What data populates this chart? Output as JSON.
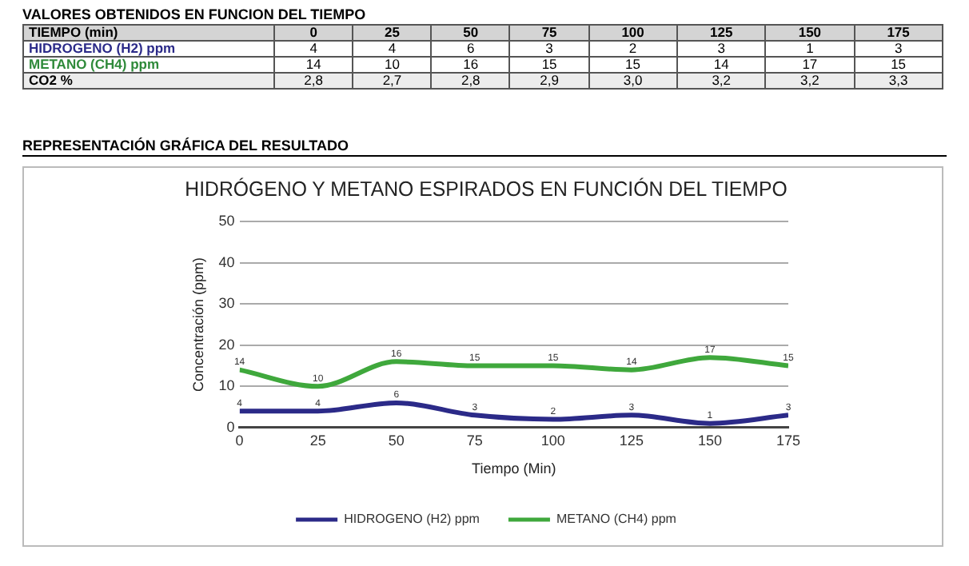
{
  "chart_data": [
    {
      "type": "heatmap",
      "title": "VALORES OBTENIDOS EN FUNCION DEL TIEMPO",
      "xlabel": "TIEMPO (min)",
      "categories": [
        "0",
        "25",
        "50",
        "75",
        "100",
        "125",
        "150",
        "175"
      ],
      "y_categories": [
        "HIDROGENO (H2) ppm",
        "METANO (CH4) ppm",
        "CO2 %"
      ],
      "cells": [
        [
          4,
          4,
          6,
          3,
          2,
          3,
          1,
          3
        ],
        [
          14,
          10,
          16,
          15,
          15,
          14,
          17,
          15
        ],
        [
          2.8,
          2.7,
          2.8,
          2.9,
          3.0,
          3.2,
          3.2,
          3.3
        ]
      ],
      "cell_labels": [
        [
          "4",
          "4",
          "6",
          "3",
          "2",
          "3",
          "1",
          "3"
        ],
        [
          "14",
          "10",
          "16",
          "15",
          "15",
          "14",
          "17",
          "15"
        ],
        [
          "2,8",
          "2,7",
          "2,8",
          "2,9",
          "3,0",
          "3,2",
          "3,2",
          "3,3"
        ]
      ]
    },
    {
      "type": "line",
      "title": "REPRESENTACIÓN GRÁFICA DEL RESULTADO",
      "subtitle": "HIDRÓGENO Y METANO ESPIRADOS EN FUNCIÓN DEL TIEMPO",
      "xlabel": "Tiempo (Min)",
      "ylabel": "Concentración (ppm)",
      "x": [
        0,
        25,
        50,
        75,
        100,
        125,
        150,
        175
      ],
      "series": [
        {
          "name": "HIDROGENO (H2) ppm",
          "color": "#2b2a88",
          "values": [
            4,
            4,
            6,
            3,
            2,
            3,
            1,
            3
          ]
        },
        {
          "name": "METANO (CH4) ppm",
          "color": "#3fa83c",
          "values": [
            14,
            10,
            16,
            15,
            15,
            14,
            17,
            15
          ]
        }
      ],
      "xlim": [
        0,
        175
      ],
      "xticks": [
        0,
        25,
        50,
        75,
        100,
        125,
        150,
        175
      ],
      "ylim": [
        0,
        50
      ],
      "yticks": [
        0,
        10,
        20,
        30,
        40,
        50
      ],
      "grid": "y",
      "legend": "bottom",
      "data_labels": true,
      "marker": "none"
    }
  ]
}
